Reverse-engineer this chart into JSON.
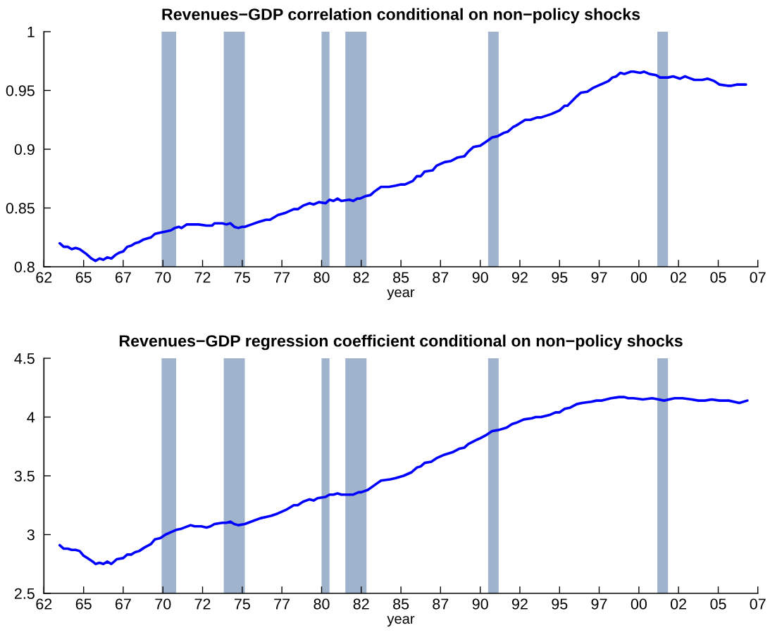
{
  "chart_data": [
    {
      "type": "line",
      "title": "Revenues−GDP correlation conditional on non−policy shocks",
      "xlabel": "year",
      "xlim": [
        "1962-07",
        "2007-07"
      ],
      "xticks": [
        {
          "value": "1962-07",
          "label": "62"
        },
        {
          "value": "1965-01",
          "label": "65"
        },
        {
          "value": "1967-07",
          "label": "67"
        },
        {
          "value": "1970-01",
          "label": "70"
        },
        {
          "value": "1972-07",
          "label": "72"
        },
        {
          "value": "1975-01",
          "label": "75"
        },
        {
          "value": "1977-07",
          "label": "77"
        },
        {
          "value": "1980-01",
          "label": "80"
        },
        {
          "value": "1982-07",
          "label": "82"
        },
        {
          "value": "1985-01",
          "label": "85"
        },
        {
          "value": "1987-07",
          "label": "87"
        },
        {
          "value": "1990-01",
          "label": "90"
        },
        {
          "value": "1992-07",
          "label": "92"
        },
        {
          "value": "1995-01",
          "label": "95"
        },
        {
          "value": "1997-07",
          "label": "97"
        },
        {
          "value": "2000-01",
          "label": "00"
        },
        {
          "value": "2002-07",
          "label": "02"
        },
        {
          "value": "2005-01",
          "label": "05"
        },
        {
          "value": "2007-07",
          "label": "07"
        }
      ],
      "ylim": [
        0.8,
        1
      ],
      "yticks": [
        0.8,
        0.85,
        0.9,
        0.95,
        1
      ],
      "x": [
        "1963-07",
        "1963-10",
        "1964-01",
        "1964-04",
        "1964-07",
        "1964-10",
        "1965-03",
        "1965-07",
        "1965-10",
        "1966-01",
        "1966-04",
        "1966-07",
        "1966-10",
        "1967-01",
        "1967-04",
        "1967-07",
        "1967-10",
        "1968-01",
        "1968-04",
        "1968-07",
        "1968-10",
        "1969-04",
        "1969-07",
        "1969-11",
        "1970-03",
        "1970-07",
        "1970-10",
        "1971-01",
        "1971-03",
        "1971-07",
        "1971-11",
        "1972-04",
        "1972-10",
        "1973-02",
        "1973-04",
        "1973-10",
        "1974-01",
        "1974-04",
        "1974-07",
        "1974-10",
        "1975-01",
        "1975-03",
        "1975-08",
        "1976-01",
        "1976-07",
        "1976-10",
        "1977-04",
        "1977-10",
        "1978-04",
        "1978-07",
        "1978-11",
        "1979-04",
        "1979-07",
        "1979-11",
        "1980-04",
        "1980-07",
        "1980-10",
        "1981-01",
        "1981-04",
        "1981-10",
        "1982-01",
        "1982-04",
        "1982-06",
        "1982-10",
        "1983-02",
        "1983-05",
        "1983-10",
        "1984-04",
        "1984-09",
        "1985-01",
        "1985-04",
        "1985-10",
        "1986-01",
        "1986-04",
        "1986-07",
        "1987-01",
        "1987-04",
        "1987-10",
        "1988-03",
        "1988-08",
        "1989-01",
        "1989-04",
        "1989-08",
        "1990-01",
        "1990-05",
        "1990-10",
        "1991-02",
        "1991-07",
        "1991-10",
        "1992-02",
        "1992-04",
        "1992-11",
        "1993-03",
        "1993-08",
        "1993-11",
        "1994-07",
        "1995-01",
        "1995-05",
        "1995-07",
        "1996-02",
        "1996-05",
        "1996-10",
        "1997-02",
        "1997-08",
        "1997-12",
        "1998-02",
        "1998-05",
        "1998-08",
        "1998-11",
        "1999-02",
        "1999-07",
        "1999-09",
        "2000-02",
        "2000-05",
        "2000-09",
        "2001-02",
        "2001-05",
        "2001-11",
        "2002-03",
        "2002-08",
        "2002-12",
        "2003-02",
        "2003-07",
        "2004-01",
        "2004-05",
        "2004-10",
        "2005-02",
        "2005-08",
        "2005-11",
        "2006-03",
        "2006-10"
      ],
      "series": [
        {
          "color": "#0000ff",
          "values": [
            0.82,
            0.817,
            0.817,
            0.815,
            0.816,
            0.815,
            0.811,
            0.807,
            0.805,
            0.807,
            0.806,
            0.808,
            0.807,
            0.81,
            0.812,
            0.813,
            0.817,
            0.818,
            0.82,
            0.821,
            0.823,
            0.825,
            0.828,
            0.829,
            0.83,
            0.831,
            0.833,
            0.834,
            0.833,
            0.836,
            0.836,
            0.836,
            0.835,
            0.835,
            0.837,
            0.837,
            0.836,
            0.837,
            0.834,
            0.833,
            0.834,
            0.834,
            0.836,
            0.838,
            0.84,
            0.84,
            0.844,
            0.846,
            0.849,
            0.849,
            0.852,
            0.854,
            0.853,
            0.855,
            0.854,
            0.857,
            0.856,
            0.858,
            0.856,
            0.857,
            0.856,
            0.858,
            0.858,
            0.86,
            0.861,
            0.864,
            0.868,
            0.868,
            0.869,
            0.87,
            0.87,
            0.873,
            0.877,
            0.877,
            0.881,
            0.882,
            0.886,
            0.889,
            0.89,
            0.893,
            0.894,
            0.898,
            0.902,
            0.903,
            0.906,
            0.91,
            0.911,
            0.914,
            0.915,
            0.919,
            0.92,
            0.925,
            0.925,
            0.927,
            0.927,
            0.93,
            0.933,
            0.937,
            0.937,
            0.945,
            0.948,
            0.949,
            0.952,
            0.955,
            0.957,
            0.958,
            0.961,
            0.962,
            0.965,
            0.964,
            0.966,
            0.966,
            0.965,
            0.966,
            0.964,
            0.963,
            0.961,
            0.961,
            0.962,
            0.96,
            0.962,
            0.961,
            0.959,
            0.959,
            0.96,
            0.958,
            0.955,
            0.954,
            0.954,
            0.955,
            0.955
          ]
        }
      ],
      "bands": [
        {
          "axis": "x",
          "from": "1969-12",
          "to": "1970-11",
          "color": "#9fb4cc"
        },
        {
          "axis": "x",
          "from": "1973-11",
          "to": "1975-03",
          "color": "#9fb4cc"
        },
        {
          "axis": "x",
          "from": "1980-01",
          "to": "1980-07",
          "color": "#9fb4cc"
        },
        {
          "axis": "x",
          "from": "1981-07",
          "to": "1982-11",
          "color": "#9fb4cc"
        },
        {
          "axis": "x",
          "from": "1990-07",
          "to": "1991-03",
          "color": "#9fb4cc"
        },
        {
          "axis": "x",
          "from": "2001-03",
          "to": "2001-11",
          "color": "#9fb4cc"
        }
      ],
      "line_style": "solid"
    },
    {
      "type": "line",
      "title": "Revenues−GDP regression coefficient conditional on non−policy shocks",
      "xlabel": "year",
      "xlim": [
        "1962-07",
        "2007-07"
      ],
      "xticks": [
        {
          "value": "1962-07",
          "label": "62"
        },
        {
          "value": "1965-01",
          "label": "65"
        },
        {
          "value": "1967-07",
          "label": "67"
        },
        {
          "value": "1970-01",
          "label": "70"
        },
        {
          "value": "1972-07",
          "label": "72"
        },
        {
          "value": "1975-01",
          "label": "75"
        },
        {
          "value": "1977-07",
          "label": "77"
        },
        {
          "value": "1980-01",
          "label": "80"
        },
        {
          "value": "1982-07",
          "label": "82"
        },
        {
          "value": "1985-01",
          "label": "85"
        },
        {
          "value": "1987-07",
          "label": "87"
        },
        {
          "value": "1990-01",
          "label": "90"
        },
        {
          "value": "1992-07",
          "label": "92"
        },
        {
          "value": "1995-01",
          "label": "95"
        },
        {
          "value": "1997-07",
          "label": "97"
        },
        {
          "value": "2000-01",
          "label": "00"
        },
        {
          "value": "2002-07",
          "label": "02"
        },
        {
          "value": "2005-01",
          "label": "05"
        },
        {
          "value": "2007-07",
          "label": "07"
        }
      ],
      "ylim": [
        2.5,
        4.5
      ],
      "yticks": [
        2.5,
        3,
        3.5,
        4,
        4.5
      ],
      "x": [
        "1963-07",
        "1963-10",
        "1964-01",
        "1964-04",
        "1964-07",
        "1964-10",
        "1965-01",
        "1965-04",
        "1965-08",
        "1965-10",
        "1966-01",
        "1966-04",
        "1966-07",
        "1966-10",
        "1967-02",
        "1967-07",
        "1967-10",
        "1968-01",
        "1968-04",
        "1968-07",
        "1968-11",
        "1969-04",
        "1969-07",
        "1969-11",
        "1970-03",
        "1970-07",
        "1970-11",
        "1971-03",
        "1971-10",
        "1972-01",
        "1972-06",
        "1972-10",
        "1973-01",
        "1973-04",
        "1973-10",
        "1974-01",
        "1974-04",
        "1974-07",
        "1974-10",
        "1975-03",
        "1975-10",
        "1976-03",
        "1976-07",
        "1976-11",
        "1977-04",
        "1977-10",
        "1978-04",
        "1978-07",
        "1978-11",
        "1979-04",
        "1979-07",
        "1979-10",
        "1980-04",
        "1980-07",
        "1980-10",
        "1981-01",
        "1981-04",
        "1982-01",
        "1982-05",
        "1982-07",
        "1982-12",
        "1983-05",
        "1983-10",
        "1984-05",
        "1984-09",
        "1985-03",
        "1985-09",
        "1986-01",
        "1986-04",
        "1986-07",
        "1986-12",
        "1987-04",
        "1987-10",
        "1988-04",
        "1988-09",
        "1989-01",
        "1989-04",
        "1989-11",
        "1990-01",
        "1990-06",
        "1990-10",
        "1991-03",
        "1991-09",
        "1992-01",
        "1992-04",
        "1992-10",
        "1993-04",
        "1993-07",
        "1993-11",
        "1994-06",
        "1994-10",
        "1995-01",
        "1995-05",
        "1995-09",
        "1996-02",
        "1996-06",
        "1997-01",
        "1997-05",
        "1997-09",
        "1998-04",
        "1998-10",
        "1999-02",
        "1999-05",
        "1999-09",
        "2000-04",
        "2000-11",
        "2001-04",
        "2001-08",
        "2002-04",
        "2002-10",
        "2003-05",
        "2003-10",
        "2004-03",
        "2004-08",
        "2005-02",
        "2005-09",
        "2006-05",
        "2006-11"
      ],
      "series": [
        {
          "color": "#0000ff",
          "values": [
            2.91,
            2.88,
            2.88,
            2.87,
            2.87,
            2.86,
            2.82,
            2.8,
            2.77,
            2.75,
            2.76,
            2.75,
            2.77,
            2.75,
            2.79,
            2.8,
            2.83,
            2.83,
            2.85,
            2.86,
            2.89,
            2.92,
            2.96,
            2.97,
            3.0,
            3.02,
            3.04,
            3.05,
            3.08,
            3.07,
            3.07,
            3.06,
            3.07,
            3.09,
            3.1,
            3.1,
            3.11,
            3.09,
            3.08,
            3.09,
            3.12,
            3.14,
            3.15,
            3.16,
            3.18,
            3.21,
            3.25,
            3.25,
            3.28,
            3.3,
            3.29,
            3.31,
            3.32,
            3.34,
            3.34,
            3.35,
            3.34,
            3.34,
            3.36,
            3.36,
            3.38,
            3.42,
            3.46,
            3.47,
            3.48,
            3.5,
            3.53,
            3.57,
            3.58,
            3.61,
            3.62,
            3.65,
            3.68,
            3.7,
            3.73,
            3.74,
            3.77,
            3.81,
            3.82,
            3.85,
            3.88,
            3.89,
            3.91,
            3.94,
            3.95,
            3.98,
            3.99,
            4.0,
            4.0,
            4.02,
            4.04,
            4.04,
            4.07,
            4.08,
            4.11,
            4.12,
            4.13,
            4.14,
            4.14,
            4.16,
            4.17,
            4.17,
            4.16,
            4.16,
            4.15,
            4.16,
            4.15,
            4.14,
            4.16,
            4.16,
            4.15,
            4.14,
            4.14,
            4.15,
            4.14,
            4.14,
            4.12,
            4.14
          ]
        }
      ],
      "bands": [
        {
          "axis": "x",
          "from": "1969-12",
          "to": "1970-11",
          "color": "#9fb4cc"
        },
        {
          "axis": "x",
          "from": "1973-11",
          "to": "1975-03",
          "color": "#9fb4cc"
        },
        {
          "axis": "x",
          "from": "1980-01",
          "to": "1980-07",
          "color": "#9fb4cc"
        },
        {
          "axis": "x",
          "from": "1981-07",
          "to": "1982-11",
          "color": "#9fb4cc"
        },
        {
          "axis": "x",
          "from": "1990-07",
          "to": "1991-03",
          "color": "#9fb4cc"
        },
        {
          "axis": "x",
          "from": "2001-03",
          "to": "2001-11",
          "color": "#9fb4cc"
        }
      ],
      "line_style": "solid"
    }
  ]
}
